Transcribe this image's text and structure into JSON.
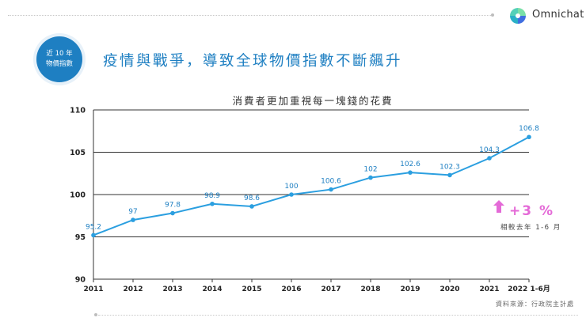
{
  "brand": {
    "name": "Omnichat"
  },
  "badge": {
    "line1": "近 10 年",
    "line2": "物價指數"
  },
  "headline": "疫情與戰爭，導致全球物價指數不斷飆升",
  "chart_data": {
    "type": "line",
    "title": "消費者更加重視每一塊錢的花費",
    "categories": [
      "2011",
      "2012",
      "2013",
      "2014",
      "2015",
      "2016",
      "2017",
      "2018",
      "2019",
      "2020",
      "2021",
      "2022 1-6月"
    ],
    "values": [
      95.2,
      97,
      97.8,
      98.9,
      98.6,
      100,
      100.6,
      102,
      102.6,
      102.3,
      104.3,
      106.8
    ],
    "data_labels": [
      "95.2",
      "97",
      "97.8",
      "98.9",
      "98.6",
      "100",
      "100.6",
      "102",
      "102.6",
      "102.3",
      "104.3",
      "106.8"
    ],
    "ylim": [
      90,
      110
    ],
    "yticks": [
      "90",
      "95",
      "100",
      "105",
      "110"
    ],
    "grid": true,
    "xlabel": "",
    "ylabel": "",
    "line_color": "#2b9fe0",
    "label_color": "#1e7fc2"
  },
  "annotation": {
    "change": "+3 %",
    "note": "相較去年 1-6 月",
    "color": "#e46ad7"
  },
  "source": "資料來源：行政院主計處",
  "colors": {
    "accent": "#1e7fc2",
    "line": "#2b9fe0",
    "highlight": "#e46ad7"
  }
}
